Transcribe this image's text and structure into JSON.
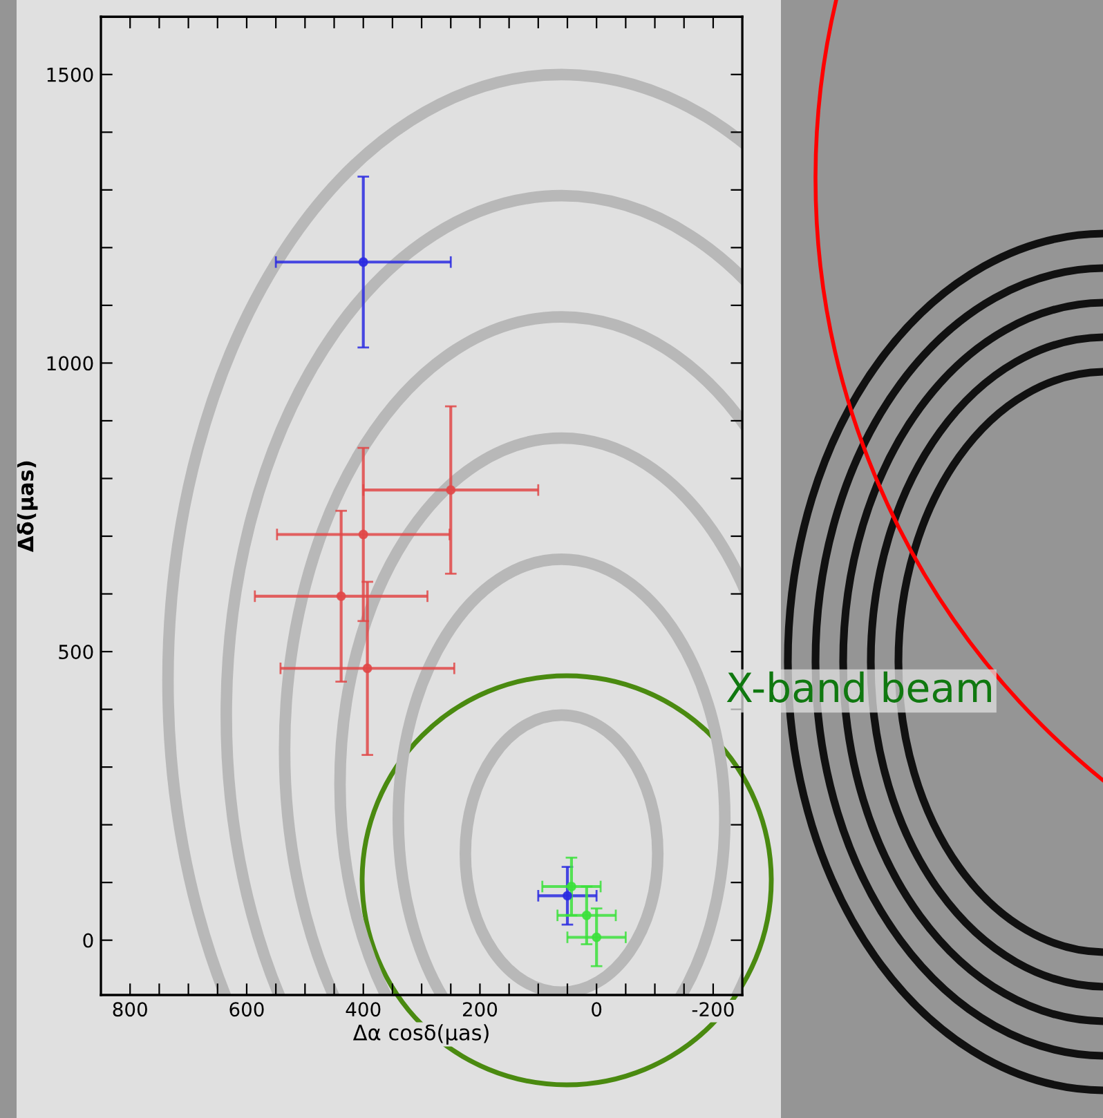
{
  "chart_data": {
    "type": "scatter",
    "xlabel": "Δα cosδ(μas)",
    "ylabel": "Δδ(μas)",
    "series": [
      {
        "color": "#2a2ae0",
        "x": [
          400,
          50
        ],
        "values": [
          1175,
          77
        ],
        "errors": [
          148,
          50
        ],
        "xerrors": [
          150,
          50
        ]
      },
      {
        "color": "#e04848",
        "x": [
          250,
          400,
          438,
          393
        ],
        "values": [
          780,
          703,
          596,
          471
        ],
        "errors": [
          145,
          150,
          148,
          150
        ],
        "xerrors": [
          150,
          148,
          148,
          149
        ]
      },
      {
        "color": "#3ce03c",
        "x": [
          43,
          17,
          0
        ],
        "values": [
          93,
          43,
          5
        ],
        "errors": [
          50,
          50,
          50
        ],
        "xerrors": [
          50,
          50,
          50
        ]
      }
    ],
    "annotations": [
      "X-band beam"
    ],
    "xlim": [
      850,
      -250
    ],
    "ylim": [
      -95,
      1600
    ],
    "xticks": [
      800,
      {
        "value": 750,
        "label": null
      },
      600,
      {
        "value": 650,
        "label": null
      },
      {
        "value": 700,
        "label": null
      },
      {
        "value": 550,
        "label": null
      },
      {
        "value": 500,
        "label": null
      },
      {
        "value": 450,
        "label": null
      },
      400,
      {
        "value": 350,
        "label": null
      },
      {
        "value": 300,
        "label": null
      },
      {
        "value": 250,
        "label": null
      },
      200,
      {
        "value": 150,
        "label": null
      },
      {
        "value": 100,
        "label": null
      },
      {
        "value": 50,
        "label": null
      },
      0,
      {
        "value": -50,
        "label": null
      },
      {
        "value": -100,
        "label": null
      },
      {
        "value": -150,
        "label": null
      },
      -200
    ],
    "yticks": [
      0,
      {
        "value": 100,
        "label": null
      },
      {
        "value": 200,
        "label": null
      },
      {
        "value": 300,
        "label": null
      },
      {
        "value": 400,
        "label": null
      },
      500,
      {
        "value": 600,
        "label": null
      },
      {
        "value": 700,
        "label": null
      },
      {
        "value": 800,
        "label": null
      },
      {
        "value": 900,
        "label": null
      },
      1000,
      {
        "value": 1100,
        "label": null
      },
      {
        "value": 1200,
        "label": null
      },
      {
        "value": 1300,
        "label": null
      },
      {
        "value": 1400,
        "label": null
      },
      1500
    ],
    "marker": "circle",
    "grid": false,
    "legend": false
  }
}
